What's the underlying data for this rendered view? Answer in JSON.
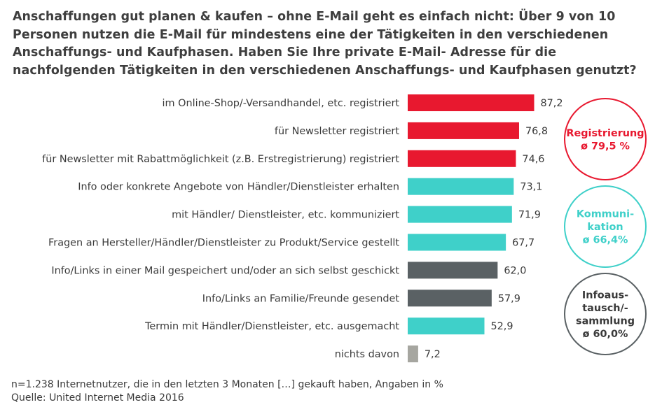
{
  "colors": {
    "registrierung": "#e8182f",
    "kommunikation": "#3fd0c9",
    "infoaustausch": "#5a6164",
    "none": "#a6a6a0"
  },
  "chart_data": {
    "type": "bar",
    "orientation": "horizontal",
    "title": "Anschaffungen gut planen & kaufen – ohne E-Mail geht es einfach nicht: Über 9 von 10 Personen nutzen die E-Mail für mindestens eine der Tätigkeiten in den verschiedenen Anschaffungs- und Kaufphasen. Haben Sie Ihre private E-Mail- Adresse für die nachfolgenden Tätigkeiten in den verschiedenen Anschaffungs- und Kaufphasen genutzt?",
    "xlim": [
      0,
      100
    ],
    "grid": false,
    "bars": [
      {
        "label": "im Online-Shop/-Versandhandel, etc. registriert",
        "value": 87.2,
        "display": "87,2",
        "group": "registrierung"
      },
      {
        "label": "für Newsletter registriert",
        "value": 76.8,
        "display": "76,8",
        "group": "registrierung"
      },
      {
        "label": "für Newsletter mit Rabattmöglichkeit (z.B. Erstregistrierung) registriert",
        "value": 74.6,
        "display": "74,6",
        "group": "registrierung"
      },
      {
        "label": "Info oder konkrete Angebote von Händler/Dienstleister erhalten",
        "value": 73.1,
        "display": "73,1",
        "group": "kommunikation"
      },
      {
        "label": "mit Händler/ Dienstleister, etc. kommuniziert",
        "value": 71.9,
        "display": "71,9",
        "group": "kommunikation"
      },
      {
        "label": "Fragen an Hersteller/Händler/Dienstleister zu Produkt/Service gestellt",
        "value": 67.7,
        "display": "67,7",
        "group": "kommunikation"
      },
      {
        "label": "Info/Links in einer Mail gespeichert und/oder an sich selbst geschickt",
        "value": 62.0,
        "display": "62,0",
        "group": "infoaustausch"
      },
      {
        "label": "Info/Links an Familie/Freunde gesendet",
        "value": 57.9,
        "display": "57,9",
        "group": "infoaustausch"
      },
      {
        "label": "Termin mit Händler/Dienstleister, etc. ausgemacht",
        "value": 52.9,
        "display": "52,9",
        "group": "kommunikation"
      },
      {
        "label": "nichts davon",
        "value": 7.2,
        "display": "7,2",
        "group": "none"
      }
    ],
    "groups": [
      {
        "key": "registrierung",
        "lines": [
          "Registrierung",
          "ø 79,5 %"
        ],
        "average": 79.5
      },
      {
        "key": "kommunikation",
        "lines": [
          "Kommuni-",
          "kation",
          "ø 66,4%"
        ],
        "average": 66.4
      },
      {
        "key": "infoaustausch",
        "lines": [
          "Infoaus-",
          "tausch/-",
          "sammlung",
          "ø 60,0%"
        ],
        "average": 60.0
      }
    ]
  },
  "footnote": {
    "sample": "n=1.238 Internetnutzer, die in den letzten 3 Monaten […] gekauft haben, Angaben in %",
    "source": "Quelle: United Internet Media 2016"
  }
}
